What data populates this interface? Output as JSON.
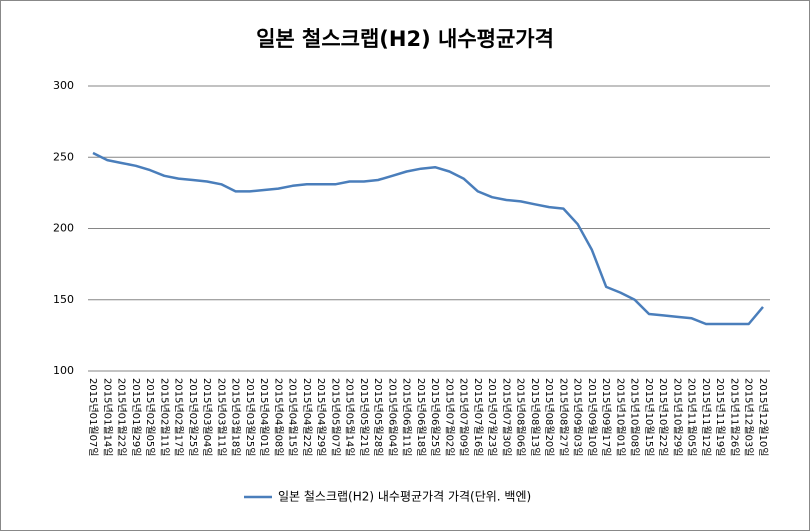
{
  "chart_data": {
    "type": "line",
    "title": "일본 철스크랩(H2) 내수평균가격",
    "categories": [
      "2015년01월07일",
      "2015년01월14일",
      "2015년01월22일",
      "2015년01월29일",
      "2015년02월05일",
      "2015년02월11일",
      "2015년02월17일",
      "2015년02월25일",
      "2015년03월04일",
      "2015년03월11일",
      "2015년03월18일",
      "2015년03월25일",
      "2015년04월01일",
      "2015년04월08일",
      "2015년04월15일",
      "2015년04월22일",
      "2015년04월29일",
      "2015년05월07일",
      "2015년05월14일",
      "2015년05월21일",
      "2015년05월28일",
      "2015년06월04일",
      "2015년06월11일",
      "2015년06월18일",
      "2015년06월25일",
      "2015년07월02일",
      "2015년07월09일",
      "2015년07월16일",
      "2015년07월23일",
      "2015년07월30일",
      "2015년08월06일",
      "2015년08월13일",
      "2015년08월20일",
      "2015년08월27일",
      "2015년09월03일",
      "2015년09월10일",
      "2015년09월17일",
      "2015년10월01일",
      "2015년10월08일",
      "2015년10월15일",
      "2015년10월22일",
      "2015년10월29일",
      "2015년11월05일",
      "2015년11월12일",
      "2015년11월19일",
      "2015년11월26일",
      "2015년12월03일",
      "2015년12월10일"
    ],
    "series": [
      {
        "name": "일본 철스크랩(H2) 내수평균가격 가격(단위. 백엔)",
        "color": "#4a7ebb",
        "values": [
          253,
          248,
          246,
          244,
          241,
          237,
          235,
          234,
          233,
          231,
          226,
          226,
          227,
          228,
          230,
          231,
          231,
          231,
          233,
          233,
          234,
          237,
          240,
          242,
          243,
          240,
          235,
          226,
          222,
          220,
          219,
          217,
          215,
          214,
          203,
          185,
          159,
          155,
          150,
          140,
          139,
          138,
          137,
          133,
          133,
          133,
          133,
          145
        ]
      }
    ],
    "ylim": [
      100,
      300
    ],
    "yticks": [
      100,
      150,
      200,
      250,
      300
    ],
    "grid": true,
    "legend": "bottom"
  }
}
